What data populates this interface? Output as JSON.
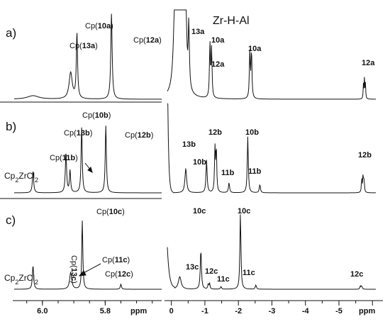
{
  "chart_data": {
    "type": "line",
    "title": "",
    "x_axis_unit": "ppm",
    "left_axis": {
      "xlim": [
        6.09,
        5.62
      ],
      "ticks": [
        "6.0",
        "5.8"
      ],
      "unit": "ppm"
    },
    "right_axis": {
      "xlim": [
        0.12,
        -6.1
      ],
      "ticks": [
        "0",
        "-1",
        "-2",
        "-3",
        "-4",
        "-5"
      ]
    },
    "corner_label": "Zr-H-Al",
    "panels": [
      {
        "id": "a",
        "label": "a)",
        "left": {
          "peaks": [
            {
              "x": 6.03,
              "h": 0.04,
              "w": 0.022
            },
            {
              "x": 5.91,
              "h": 0.3,
              "w": 0.006
            },
            {
              "x": 5.89,
              "h": 0.74,
              "w": 0.0024
            },
            {
              "x": 5.78,
              "h": 0.97,
              "w": 0.0026
            }
          ],
          "labels": [
            {
              "id": "13a",
              "pre": "Cp(",
              "bold": "13a",
              "post": ")"
            },
            {
              "id": "10a",
              "pre": "Cp(",
              "bold": "10a",
              "post": ")"
            },
            {
              "id": "12a",
              "pre": "Cp(",
              "bold": "12a",
              "post": ")"
            }
          ]
        },
        "right": {
          "peaks": [
            {
              "x": -0.12,
              "h": 1.4,
              "w": 0.05
            },
            {
              "x": -0.24,
              "h": 1.6,
              "w": 0.04
            },
            {
              "x": -0.34,
              "h": 1.5,
              "w": 0.035
            },
            {
              "x": -0.42,
              "h": 1.3,
              "w": 0.03
            },
            {
              "x": -0.52,
              "h": 0.72,
              "w": 0.02
            },
            {
              "x": -1.15,
              "h": 0.62,
              "w": 0.016
            },
            {
              "x": -1.2,
              "h": 0.55,
              "w": 0.016
            },
            {
              "x": -2.34,
              "h": 0.52,
              "w": 0.016
            },
            {
              "x": -2.39,
              "h": 0.56,
              "w": 0.016
            },
            {
              "x": -5.73,
              "h": 0.16,
              "w": 0.01
            },
            {
              "x": -5.76,
              "h": 0.22,
              "w": 0.01
            },
            {
              "x": -5.79,
              "h": 0.17,
              "w": 0.01
            }
          ],
          "labels": [
            "13a",
            "10a",
            "12a",
            "10a",
            "12a"
          ]
        }
      },
      {
        "id": "b",
        "label": "b)",
        "left": {
          "peaks": [
            {
              "x": 6.03,
              "h": 0.24,
              "w": 0.0024
            },
            {
              "x": 5.925,
              "h": 0.44,
              "w": 0.0024
            },
            {
              "x": 5.912,
              "h": 0.24,
              "w": 0.0022
            },
            {
              "x": 5.875,
              "h": 0.72,
              "w": 0.0022
            },
            {
              "x": 5.798,
              "h": 0.74,
              "w": 0.0022
            }
          ],
          "labels": [
            {
              "id": "cp2zrcl2",
              "pre": "Cp",
              "sub1": "2",
              "mid": "ZrCl",
              "sub2": "2"
            },
            {
              "id": "11b",
              "pre": "Cp(",
              "bold": "11b",
              "post": ")"
            },
            {
              "id": "13b",
              "pre": "Cp(",
              "bold": "13b",
              "post": ")"
            },
            {
              "id": "10b",
              "pre": "Cp(",
              "bold": "10b",
              "post": ")"
            },
            {
              "id": "12b",
              "pre": "Cp(",
              "bold": "12b",
              "post": ")"
            }
          ]
        },
        "right": {
          "peaks": [
            {
              "x": -0.43,
              "h": 0.27,
              "w": 0.03
            },
            {
              "x": -1.05,
              "h": 0.36,
              "w": 0.02
            },
            {
              "x": -1.3,
              "h": 0.48,
              "w": 0.015
            },
            {
              "x": -1.34,
              "h": 0.5,
              "w": 0.015
            },
            {
              "x": -1.72,
              "h": 0.11,
              "w": 0.02
            },
            {
              "x": -2.28,
              "h": 0.62,
              "w": 0.018
            },
            {
              "x": -2.64,
              "h": 0.09,
              "w": 0.02
            },
            {
              "x": -5.68,
              "h": 0.16,
              "w": 0.012
            },
            {
              "x": -5.72,
              "h": 0.2,
              "w": 0.012
            },
            {
              "x": -5.75,
              "h": 0.14,
              "w": 0.012
            }
          ],
          "labels": [
            "13b",
            "10b",
            "12b",
            "10b",
            "11b",
            "11b",
            "12b"
          ]
        }
      },
      {
        "id": "c",
        "label": "c)",
        "left": {
          "peaks": [
            {
              "x": 6.03,
              "h": 0.28,
              "w": 0.0024
            },
            {
              "x": 5.91,
              "h": 0.2,
              "w": 0.004
            },
            {
              "x": 5.873,
              "h": 0.82,
              "w": 0.002
            },
            {
              "x": 5.75,
              "h": 0.06,
              "w": 0.0022
            }
          ],
          "labels": [
            {
              "id": "cp2zrcl2",
              "pre": "Cp",
              "sub1": "2",
              "mid": "ZrCl",
              "sub2": "2"
            },
            {
              "id": "13c",
              "pre": "Cp(",
              "bold": "13c",
              "post": ")"
            },
            {
              "id": "10c",
              "pre": "Cp(",
              "bold": "10c",
              "post": ")"
            },
            {
              "id": "11c",
              "pre": "Cp(",
              "bold": "11c",
              "post": ")"
            },
            {
              "id": "12c",
              "pre": "Cp(",
              "bold": "12c",
              "post": ")"
            }
          ]
        },
        "right": {
          "peaks": [
            {
              "x": -0.25,
              "h": 0.15,
              "w": 0.05
            },
            {
              "x": -0.88,
              "h": 0.48,
              "w": 0.02
            },
            {
              "x": -1.1,
              "h": 0.06,
              "w": 0.015
            },
            {
              "x": -1.14,
              "h": 0.07,
              "w": 0.015
            },
            {
              "x": -1.48,
              "h": 0.03,
              "w": 0.02
            },
            {
              "x": -2.06,
              "h": 0.92,
              "w": 0.018
            },
            {
              "x": -2.52,
              "h": 0.05,
              "w": 0.02
            },
            {
              "x": -5.63,
              "h": 0.03,
              "w": 0.012
            },
            {
              "x": -5.66,
              "h": 0.04,
              "w": 0.012
            },
            {
              "x": -5.69,
              "h": 0.03,
              "w": 0.012
            }
          ],
          "labels": [
            "13c",
            "10c",
            "12c",
            "11c",
            "10c",
            "11c",
            "12c"
          ]
        }
      }
    ]
  }
}
